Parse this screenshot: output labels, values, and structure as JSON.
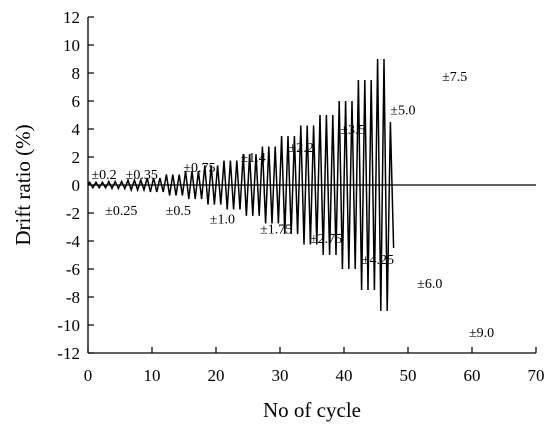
{
  "chart_data": {
    "type": "line",
    "title": "",
    "xlabel": "No of cycle",
    "ylabel": "Drift ratio (%)",
    "xlim": [
      0,
      70
    ],
    "ylim": [
      -12,
      12
    ],
    "x_ticks": [
      0,
      10,
      20,
      30,
      40,
      50,
      60,
      70
    ],
    "y_ticks": [
      -12,
      -10,
      -8,
      -6,
      -4,
      -2,
      0,
      2,
      4,
      6,
      8,
      10,
      12
    ],
    "grid": false,
    "zero_line": true,
    "line_color": "#000000",
    "amplitude_groups": [
      {
        "amplitude": 0.2,
        "cycles": 3
      },
      {
        "amplitude": 0.25,
        "cycles": 3
      },
      {
        "amplitude": 0.35,
        "cycles": 3
      },
      {
        "amplitude": 0.5,
        "cycles": 3
      },
      {
        "amplitude": 0.75,
        "cycles": 3
      },
      {
        "amplitude": 1.0,
        "cycles": 3
      },
      {
        "amplitude": 1.4,
        "cycles": 3
      },
      {
        "amplitude": 1.75,
        "cycles": 3
      },
      {
        "amplitude": 2.2,
        "cycles": 3
      },
      {
        "amplitude": 2.75,
        "cycles": 3
      },
      {
        "amplitude": 3.5,
        "cycles": 3
      },
      {
        "amplitude": 4.25,
        "cycles": 3
      },
      {
        "amplitude": 5.0,
        "cycles": 3
      },
      {
        "amplitude": 6.0,
        "cycles": 3
      },
      {
        "amplitude": 7.5,
        "cycles": 3
      },
      {
        "amplitude": 9.0,
        "cycles": 2
      },
      {
        "amplitude": 4.5,
        "cycles": 1
      }
    ],
    "annotations": [
      {
        "text": "±0.2",
        "x": 2.5,
        "y": 0.8
      },
      {
        "text": "±0.25",
        "x": 5.2,
        "y": -1.8
      },
      {
        "text": "±0.35",
        "x": 8.4,
        "y": 0.8
      },
      {
        "text": "±0.5",
        "x": 14.1,
        "y": -1.8
      },
      {
        "text": "±0.75",
        "x": 17.4,
        "y": 1.3
      },
      {
        "text": "±1.0",
        "x": 21.0,
        "y": -2.4
      },
      {
        "text": "±1.4",
        "x": 25.8,
        "y": 2.0
      },
      {
        "text": "±1.75",
        "x": 29.4,
        "y": -3.1
      },
      {
        "text": "±2.2",
        "x": 33.3,
        "y": 2.7
      },
      {
        "text": "±2.75",
        "x": 37.2,
        "y": -3.8
      },
      {
        "text": "±3.5",
        "x": 41.4,
        "y": 4.0
      },
      {
        "text": "±4.25",
        "x": 45.3,
        "y": -5.3
      },
      {
        "text": "±5.0",
        "x": 49.2,
        "y": 5.4
      },
      {
        "text": "±6.0",
        "x": 53.4,
        "y": -7.0
      },
      {
        "text": "±7.5",
        "x": 57.3,
        "y": 7.8
      },
      {
        "text": "±9.0",
        "x": 61.5,
        "y": -10.5
      }
    ]
  }
}
